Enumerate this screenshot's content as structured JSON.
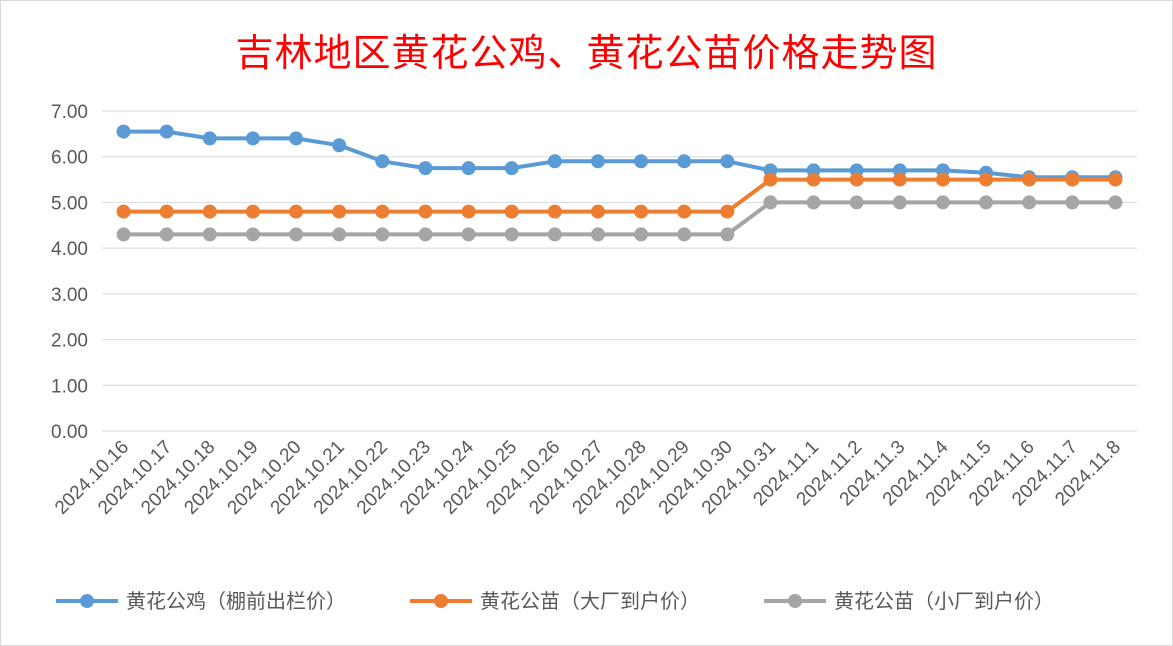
{
  "chart_data": {
    "type": "line",
    "title": "吉林地区黄花公鸡、黄花公苗价格走势图",
    "xlabel": "",
    "ylabel": "",
    "ylim": [
      0,
      7
    ],
    "yticks": [
      "0.00",
      "1.00",
      "2.00",
      "3.00",
      "4.00",
      "5.00",
      "6.00",
      "7.00"
    ],
    "grid": true,
    "legend_position": "bottom",
    "categories": [
      "2024.10.16",
      "2024.10.17",
      "2024.10.18",
      "2024.10.19",
      "2024.10.20",
      "2024.10.21",
      "2024.10.22",
      "2024.10.23",
      "2024.10.24",
      "2024.10.25",
      "2024.10.26",
      "2024.10.27",
      "2024.10.28",
      "2024.10.29",
      "2024.10.30",
      "2024.10.31",
      "2024.11.1",
      "2024.11.2",
      "2024.11.3",
      "2024.11.4",
      "2024.11.5",
      "2024.11.6",
      "2024.11.7",
      "2024.11.8"
    ],
    "series": [
      {
        "name": "黄花公鸡（棚前出栏价）",
        "color": "#5b9bd5",
        "values": [
          6.55,
          6.55,
          6.4,
          6.4,
          6.4,
          6.25,
          5.9,
          5.75,
          5.75,
          5.75,
          5.9,
          5.9,
          5.9,
          5.9,
          5.9,
          5.7,
          5.7,
          5.7,
          5.7,
          5.7,
          5.65,
          5.55,
          5.55,
          5.55
        ]
      },
      {
        "name": "黄花公苗（大厂到户价）",
        "color": "#ed7d31",
        "values": [
          4.8,
          4.8,
          4.8,
          4.8,
          4.8,
          4.8,
          4.8,
          4.8,
          4.8,
          4.8,
          4.8,
          4.8,
          4.8,
          4.8,
          4.8,
          5.5,
          5.5,
          5.5,
          5.5,
          5.5,
          5.5,
          5.5,
          5.5,
          5.5
        ]
      },
      {
        "name": "黄花公苗（小厂到户价）",
        "color": "#a5a5a5",
        "values": [
          4.3,
          4.3,
          4.3,
          4.3,
          4.3,
          4.3,
          4.3,
          4.3,
          4.3,
          4.3,
          4.3,
          4.3,
          4.3,
          4.3,
          4.3,
          5.0,
          5.0,
          5.0,
          5.0,
          5.0,
          5.0,
          5.0,
          5.0,
          5.0
        ]
      }
    ]
  }
}
